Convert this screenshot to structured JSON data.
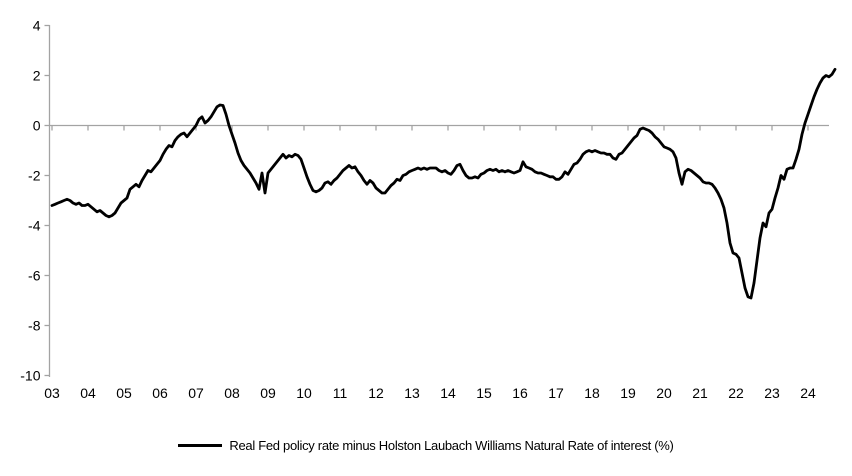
{
  "chart_data": {
    "type": "line",
    "title": "",
    "xlabel": "",
    "ylabel": "",
    "ylim": [
      -10,
      4
    ],
    "y_ticks": [
      4,
      2,
      0,
      -2,
      -4,
      -6,
      -8,
      -10
    ],
    "x_tick_labels": [
      "03",
      "04",
      "05",
      "06",
      "07",
      "08",
      "09",
      "10",
      "11",
      "12",
      "13",
      "14",
      "15",
      "16",
      "17",
      "18",
      "19",
      "20",
      "21",
      "22",
      "23",
      "24"
    ],
    "x_tick_years": [
      2003,
      2004,
      2005,
      2006,
      2007,
      2008,
      2009,
      2010,
      2011,
      2012,
      2013,
      2014,
      2015,
      2016,
      2017,
      2018,
      2019,
      2020,
      2021,
      2022,
      2023,
      2024
    ],
    "grid": "off",
    "zero_axis_line": true,
    "legend_position": "bottom-center",
    "axis_color": "#a3a3a3",
    "line_color": "#000000",
    "series": [
      {
        "name": "Real Fed policy rate minus Holston Laubach Williams Natural Rate of interest (%)",
        "x_start_year": 2003,
        "x_step_months": 1,
        "values": [
          -3.2,
          -3.15,
          -3.1,
          -3.05,
          -3.0,
          -2.95,
          -3.0,
          -3.1,
          -3.15,
          -3.1,
          -3.2,
          -3.2,
          -3.15,
          -3.25,
          -3.35,
          -3.45,
          -3.4,
          -3.5,
          -3.6,
          -3.65,
          -3.6,
          -3.5,
          -3.3,
          -3.1,
          -3.0,
          -2.9,
          -2.55,
          -2.45,
          -2.35,
          -2.45,
          -2.2,
          -2.0,
          -1.8,
          -1.85,
          -1.7,
          -1.55,
          -1.4,
          -1.15,
          -0.95,
          -0.8,
          -0.85,
          -0.6,
          -0.45,
          -0.35,
          -0.3,
          -0.45,
          -0.3,
          -0.15,
          0.0,
          0.25,
          0.35,
          0.1,
          0.2,
          0.35,
          0.55,
          0.75,
          0.82,
          0.8,
          0.45,
          0.0,
          -0.35,
          -0.7,
          -1.1,
          -1.4,
          -1.6,
          -1.75,
          -1.9,
          -2.1,
          -2.3,
          -2.55,
          -1.9,
          -2.7,
          -1.9,
          -1.75,
          -1.6,
          -1.45,
          -1.3,
          -1.15,
          -1.3,
          -1.2,
          -1.25,
          -1.15,
          -1.2,
          -1.35,
          -1.7,
          -2.05,
          -2.35,
          -2.6,
          -2.65,
          -2.6,
          -2.5,
          -2.3,
          -2.25,
          -2.35,
          -2.2,
          -2.1,
          -1.95,
          -1.8,
          -1.7,
          -1.6,
          -1.7,
          -1.65,
          -1.85,
          -2.0,
          -2.2,
          -2.35,
          -2.2,
          -2.3,
          -2.5,
          -2.6,
          -2.7,
          -2.7,
          -2.55,
          -2.4,
          -2.3,
          -2.15,
          -2.2,
          -2.0,
          -1.95,
          -1.85,
          -1.8,
          -1.75,
          -1.7,
          -1.75,
          -1.7,
          -1.75,
          -1.7,
          -1.7,
          -1.7,
          -1.8,
          -1.85,
          -1.8,
          -1.9,
          -1.95,
          -1.8,
          -1.6,
          -1.55,
          -1.8,
          -2.0,
          -2.1,
          -2.1,
          -2.05,
          -2.1,
          -1.95,
          -1.9,
          -1.8,
          -1.75,
          -1.8,
          -1.75,
          -1.85,
          -1.8,
          -1.85,
          -1.8,
          -1.85,
          -1.9,
          -1.85,
          -1.8,
          -1.45,
          -1.65,
          -1.7,
          -1.75,
          -1.85,
          -1.9,
          -1.9,
          -1.95,
          -2.0,
          -2.05,
          -2.05,
          -2.15,
          -2.15,
          -2.05,
          -1.85,
          -1.95,
          -1.75,
          -1.55,
          -1.5,
          -1.35,
          -1.15,
          -1.05,
          -1.0,
          -1.05,
          -1.0,
          -1.05,
          -1.1,
          -1.1,
          -1.15,
          -1.15,
          -1.3,
          -1.35,
          -1.15,
          -1.1,
          -0.95,
          -0.8,
          -0.65,
          -0.5,
          -0.4,
          -0.15,
          -0.1,
          -0.15,
          -0.2,
          -0.3,
          -0.45,
          -0.55,
          -0.7,
          -0.85,
          -0.9,
          -0.95,
          -1.05,
          -1.3,
          -1.9,
          -2.35,
          -1.85,
          -1.75,
          -1.8,
          -1.9,
          -2.0,
          -2.1,
          -2.25,
          -2.3,
          -2.3,
          -2.35,
          -2.5,
          -2.7,
          -2.95,
          -3.3,
          -3.9,
          -4.7,
          -5.1,
          -5.15,
          -5.3,
          -5.9,
          -6.5,
          -6.85,
          -6.9,
          -6.3,
          -5.4,
          -4.5,
          -3.9,
          -4.05,
          -3.5,
          -3.35,
          -2.9,
          -2.5,
          -2.0,
          -2.15,
          -1.75,
          -1.7,
          -1.7,
          -1.35,
          -0.95,
          -0.35,
          0.1,
          0.45,
          0.8,
          1.15,
          1.45,
          1.7,
          1.9,
          2.0,
          1.95,
          2.05,
          2.25
        ]
      }
    ]
  },
  "legend": {
    "label": "Real Fed policy rate minus Holston Laubach Williams Natural Rate of interest (%)"
  }
}
